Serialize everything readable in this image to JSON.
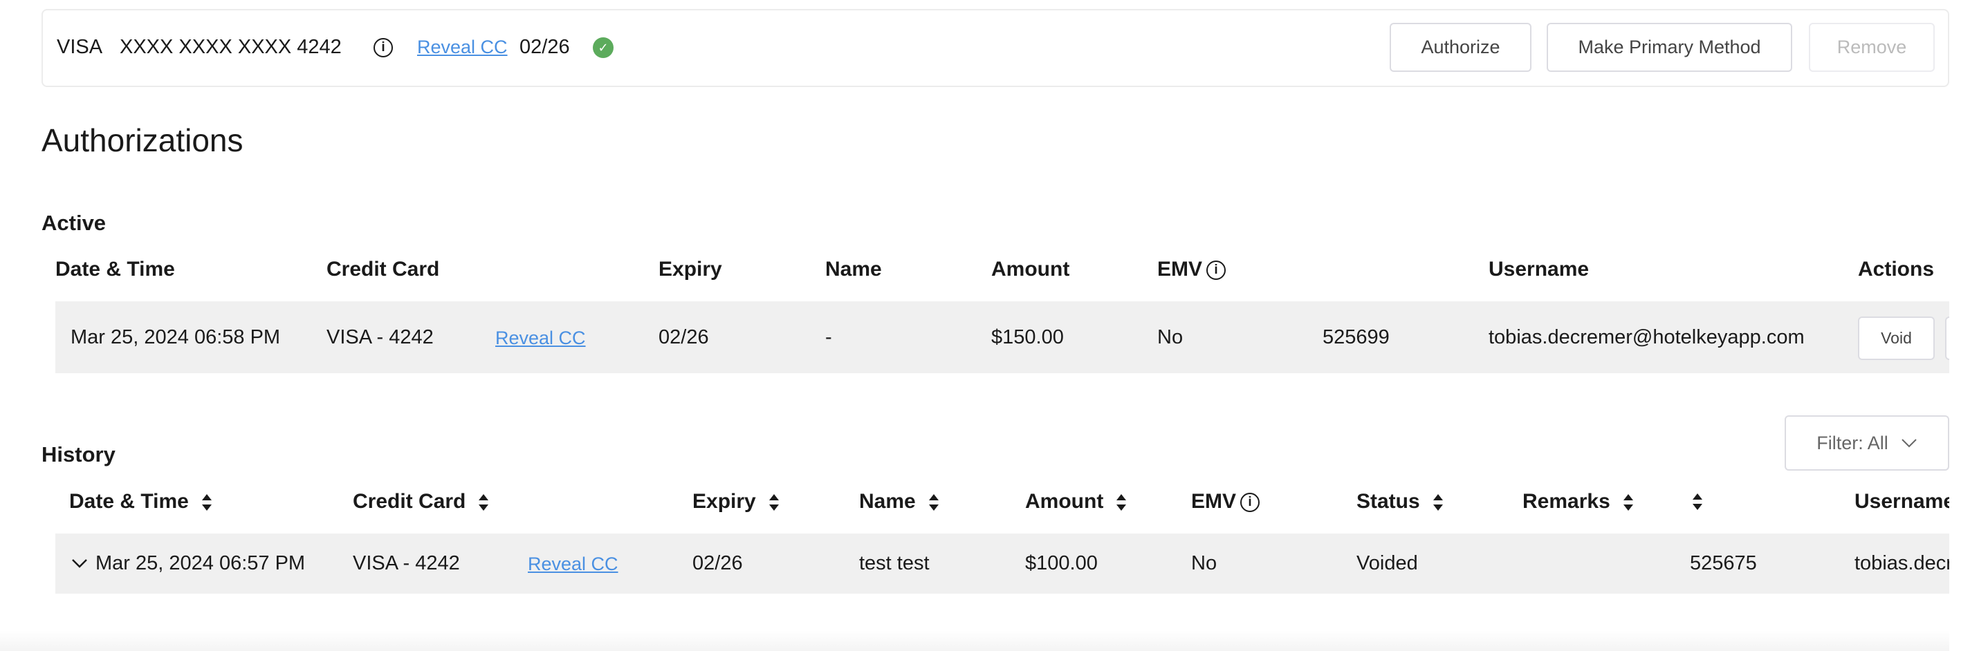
{
  "card": {
    "brand": "VISA",
    "number": "XXXX XXXX XXXX 4242",
    "reveal": "Reveal CC",
    "expiry": "02/26",
    "verified_color": "#5cab5c",
    "buttons": {
      "authorize": "Authorize",
      "make_primary": "Make Primary Method",
      "remove": "Remove"
    }
  },
  "title": "Authorizations",
  "active": {
    "label": "Active",
    "columns": [
      "Date & Time",
      "Credit Card",
      "Expiry",
      "Name",
      "Amount",
      "EMV",
      "",
      "Username",
      "Actions"
    ],
    "rows": [
      {
        "date": "Mar 25, 2024 06:58 PM",
        "card": "VISA - 4242",
        "reveal": "Reveal CC",
        "expiry": "02/26",
        "name": "-",
        "amount": "$150.00",
        "emv": "No",
        "ref": "525699",
        "username": "tobias.decremer@hotelkeyapp.com",
        "void": "Void"
      }
    ]
  },
  "history": {
    "label": "History",
    "filter": "Filter: All",
    "columns": [
      "Date & Time",
      "Credit Card",
      "Expiry",
      "Name",
      "Amount",
      "EMV",
      "Status",
      "Remarks",
      "",
      "Username"
    ],
    "rows": [
      {
        "date": "Mar 25, 2024 06:57 PM",
        "card": "VISA - 4242",
        "reveal": "Reveal CC",
        "expiry": "02/26",
        "name": "test test",
        "amount": "$100.00",
        "emv": "No",
        "status": "Voided",
        "remarks": "",
        "ref": "525675",
        "username": "tobias.decremer@hotelkeyapp.com"
      }
    ]
  }
}
